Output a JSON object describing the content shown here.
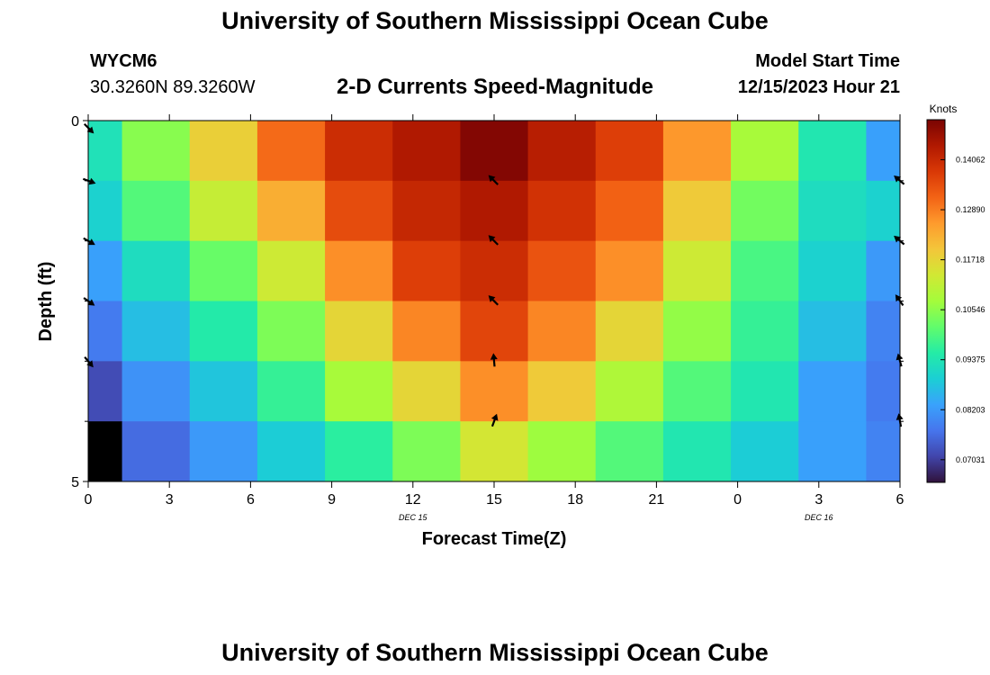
{
  "header": {
    "title": "University of Southern Mississippi Ocean Cube",
    "station": "WYCM6",
    "coordinates": "30.3260N  89.3260W",
    "subtitle": "2-D Currents Speed-Magnitude",
    "model_start_label": "Model Start Time",
    "model_start_value": "12/15/2023 Hour 21"
  },
  "chart_data": {
    "type": "heatmap",
    "xlabel": "Forecast Time(Z)",
    "ylabel": "Depth (ft)",
    "x_tick_labels": [
      "0",
      "3",
      "6",
      "9",
      "12",
      "15",
      "18",
      "21",
      "0",
      "3",
      "6"
    ],
    "date_labels": [
      {
        "text": "DEC 15",
        "at_tick": 4
      },
      {
        "text": "DEC 16",
        "at_tick": 9
      }
    ],
    "y_tick_labels": [
      "0",
      "5"
    ],
    "ylim": [
      0,
      5
    ],
    "colorbar": {
      "label": "Knots",
      "min": 0.065,
      "max": 0.15,
      "tick_labels": [
        "0.14062",
        "0.12890",
        "0.11718",
        "0.10546",
        "0.09375",
        "0.08203",
        "0.07031"
      ],
      "tick_values": [
        0.14062,
        0.1289,
        0.11718,
        0.10546,
        0.09375,
        0.08203,
        0.07031
      ],
      "colormap": [
        "#30123b",
        "#4145ab",
        "#4675ed",
        "#39a2fc",
        "#1bcfd4",
        "#24eca6",
        "#61fc6c",
        "#a4fc3b",
        "#d1e834",
        "#f3c63a",
        "#fe9b2d",
        "#f36315",
        "#d93806",
        "#b11901",
        "#7a0403"
      ]
    },
    "rows": [
      [
        0.093,
        0.105,
        0.118,
        0.131,
        0.14,
        0.144,
        0.149,
        0.143,
        0.137,
        0.126,
        0.108,
        0.094,
        0.083
      ],
      [
        0.09,
        0.1,
        0.112,
        0.123,
        0.135,
        0.141,
        0.144,
        0.139,
        0.132,
        0.119,
        0.103,
        0.092,
        0.09
      ],
      [
        0.083,
        0.092,
        0.102,
        0.113,
        0.127,
        0.137,
        0.14,
        0.134,
        0.127,
        0.113,
        0.099,
        0.09,
        0.082
      ],
      [
        0.078,
        0.087,
        0.095,
        0.104,
        0.117,
        0.128,
        0.136,
        0.128,
        0.117,
        0.106,
        0.097,
        0.087,
        0.079
      ],
      [
        0.072,
        0.081,
        0.088,
        0.097,
        0.108,
        0.117,
        0.127,
        0.119,
        0.109,
        0.1,
        0.094,
        0.083,
        0.078
      ],
      [
        0.055,
        0.076,
        0.082,
        0.089,
        0.096,
        0.104,
        0.114,
        0.107,
        0.1,
        0.094,
        0.089,
        0.083,
        0.079
      ]
    ],
    "vectors": [
      {
        "tick": 0,
        "row": 0,
        "angle": 135
      },
      {
        "tick": 0,
        "row": 1,
        "angle": 110
      },
      {
        "tick": 0,
        "row": 2,
        "angle": 120
      },
      {
        "tick": 0,
        "row": 3,
        "angle": 125
      },
      {
        "tick": 0,
        "row": 4,
        "angle": 140
      },
      {
        "tick": 5,
        "row": 1,
        "angle": -45
      },
      {
        "tick": 5,
        "row": 2,
        "angle": -45
      },
      {
        "tick": 5,
        "row": 3,
        "angle": -45
      },
      {
        "tick": 5,
        "row": 4,
        "angle": -5
      },
      {
        "tick": 5,
        "row": 5,
        "angle": 20
      },
      {
        "tick": 10,
        "row": 1,
        "angle": -50
      },
      {
        "tick": 10,
        "row": 2,
        "angle": -50
      },
      {
        "tick": 10,
        "row": 3,
        "angle": -35
      },
      {
        "tick": 10,
        "row": 4,
        "angle": -15
      },
      {
        "tick": 10,
        "row": 5,
        "angle": -10
      }
    ]
  },
  "footer": {
    "title": "University of Southern Mississippi Ocean Cube"
  }
}
